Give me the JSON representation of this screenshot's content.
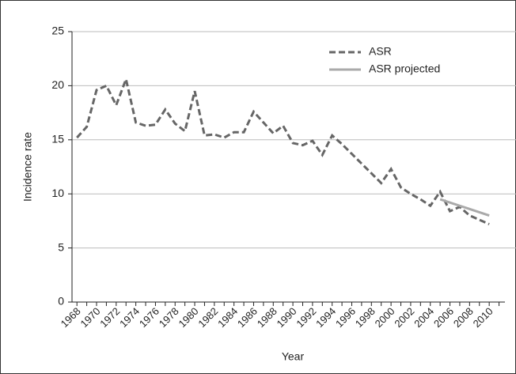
{
  "chart_data": {
    "type": "line",
    "x": [
      1968,
      1969,
      1970,
      1971,
      1972,
      1973,
      1974,
      1975,
      1976,
      1977,
      1978,
      1979,
      1980,
      1981,
      1982,
      1983,
      1984,
      1985,
      1986,
      1987,
      1988,
      1989,
      1990,
      1991,
      1992,
      1993,
      1994,
      1995,
      1996,
      1997,
      1998,
      1999,
      2000,
      2001,
      2002,
      2003,
      2004,
      2005,
      2006,
      2007,
      2008,
      2009,
      2010
    ],
    "series": [
      {
        "name": "ASR",
        "color": "#666666",
        "dash": true,
        "values": [
          15.2,
          16.2,
          19.6,
          20.0,
          18.2,
          20.6,
          16.6,
          16.3,
          16.4,
          17.8,
          16.5,
          15.8,
          19.5,
          15.4,
          15.5,
          15.2,
          15.7,
          15.7,
          17.6,
          16.6,
          15.6,
          16.3,
          14.7,
          14.5,
          14.9,
          13.6,
          15.4,
          14.6,
          13.7,
          12.8,
          11.9,
          11.0,
          12.3,
          10.6,
          10.0,
          9.5,
          8.9,
          10.2,
          8.4,
          8.8,
          8.0,
          7.6,
          7.2
        ]
      },
      {
        "name": "ASR projected",
        "color": "#aaaaaa",
        "dash": false,
        "values": [
          null,
          null,
          null,
          null,
          null,
          null,
          null,
          null,
          null,
          null,
          null,
          null,
          null,
          null,
          null,
          null,
          null,
          null,
          null,
          null,
          null,
          null,
          null,
          null,
          null,
          null,
          null,
          null,
          null,
          null,
          null,
          null,
          null,
          null,
          null,
          null,
          null,
          9.5,
          9.2,
          8.9,
          8.6,
          8.3,
          8.0
        ]
      }
    ],
    "x_label": "Year",
    "y_label": "Incidence rate",
    "xlim": [
      1967.5,
      2011.6
    ],
    "ylim": [
      0,
      25
    ],
    "xticks": [
      1968,
      1970,
      1972,
      1974,
      1976,
      1978,
      1980,
      1982,
      1984,
      1986,
      1988,
      1990,
      1992,
      1994,
      1996,
      1998,
      2000,
      2002,
      2004,
      2006,
      2008,
      2010
    ],
    "minor_xticks": [
      1969,
      1971,
      1973,
      1975,
      1977,
      1979,
      1981,
      1983,
      1985,
      1987,
      1989,
      1991,
      1993,
      1995,
      1997,
      1999,
      2001,
      2003,
      2005,
      2007,
      2009,
      2011
    ],
    "yticks": [
      0,
      5,
      10,
      15,
      20,
      25
    ],
    "grid": true,
    "legend": "upper right"
  }
}
